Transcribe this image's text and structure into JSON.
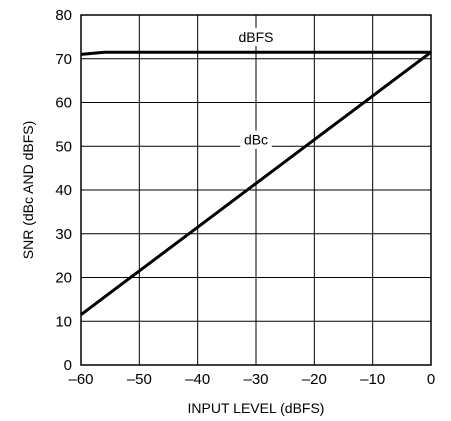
{
  "chart_data": {
    "type": "line",
    "title": "",
    "xlabel": "INPUT LEVEL (dBFS)",
    "ylabel": "SNR (dBc AND dBFS)",
    "xlim": [
      -60,
      0
    ],
    "ylim": [
      0,
      80
    ],
    "x_ticks": [
      -60,
      -50,
      -40,
      -30,
      -20,
      -10,
      0
    ],
    "x_tick_labels": [
      "–60",
      "–50",
      "–40",
      "–30",
      "–20",
      "–10",
      "0"
    ],
    "y_ticks": [
      0,
      10,
      20,
      30,
      40,
      50,
      60,
      70,
      80
    ],
    "y_tick_labels": [
      "0",
      "10",
      "20",
      "30",
      "40",
      "50",
      "60",
      "70",
      "80"
    ],
    "grid": true,
    "legend": "none",
    "line_color": "#000000",
    "series": [
      {
        "name": "dBFS",
        "x": [
          -60,
          -56,
          -50,
          -40,
          -30,
          -20,
          -10,
          0
        ],
        "y": [
          71,
          71.5,
          71.5,
          71.5,
          71.5,
          71.5,
          71.5,
          71.5
        ],
        "label_at": [
          -30,
          75
        ]
      },
      {
        "name": "dBc",
        "x": [
          -60,
          -50,
          -40,
          -30,
          -20,
          -10,
          0
        ],
        "y": [
          11.5,
          21.5,
          31.5,
          41.5,
          51.5,
          61.5,
          71.5
        ],
        "label_at": [
          -30,
          51.5
        ]
      }
    ]
  }
}
